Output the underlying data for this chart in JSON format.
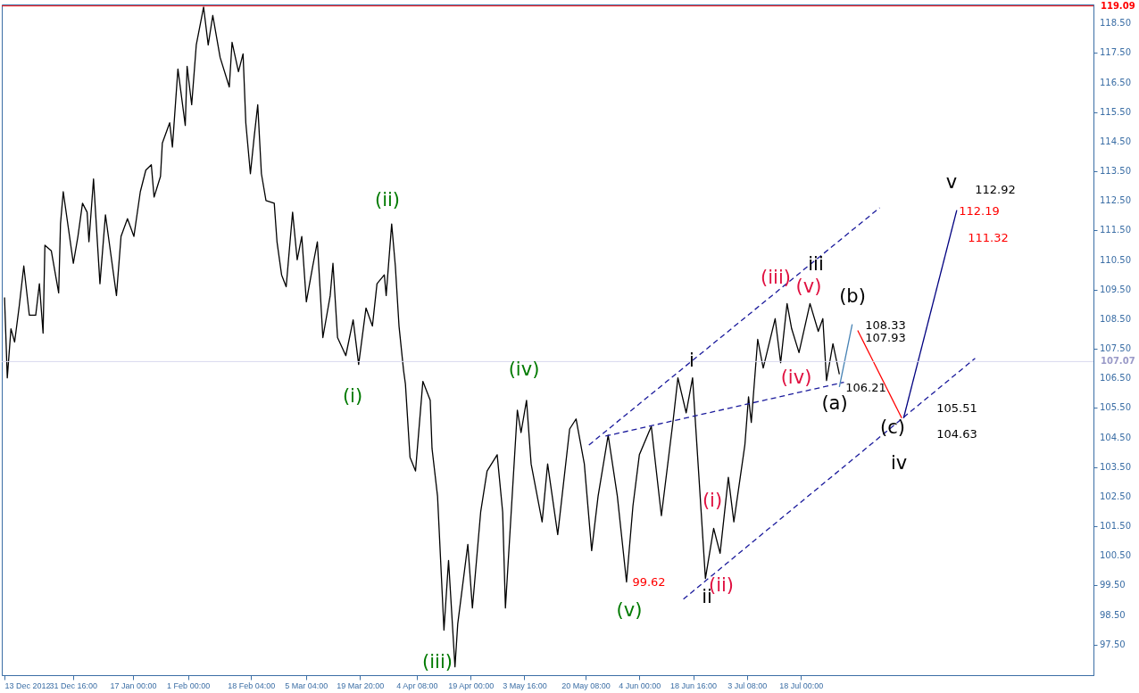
{
  "chart_data": {
    "type": "line",
    "xlim": [
      "2012-12-12T06:00",
      "2013-10-05T18:00"
    ],
    "xticks": [
      {
        "value": "2012-12-13T00:00",
        "label": "13 Dec 2012"
      },
      {
        "value": "2012-12-31T16:00",
        "label": "31 Dec 16:00"
      },
      {
        "value": "2013-01-17T00:00",
        "label": "17 Jan 00:00"
      },
      {
        "value": "2013-02-01T00:00",
        "label": "1 Feb 00:00"
      },
      {
        "value": "2013-02-18T04:00",
        "label": "18 Feb 04:00"
      },
      {
        "value": "2013-03-05T04:00",
        "label": "5 Mar 04:00"
      },
      {
        "value": "2013-03-19T20:00",
        "label": "19 Mar 20:00"
      },
      {
        "value": "2013-04-04T08:00",
        "label": "4 Apr 08:00"
      },
      {
        "value": "2013-04-19T00:00",
        "label": "19 Apr 00:00"
      },
      {
        "value": "2013-05-03T16:00",
        "label": "3 May 16:00"
      },
      {
        "value": "2013-05-20T08:00",
        "label": "20 May 08:00"
      },
      {
        "value": "2013-06-04T00:00",
        "label": "4 Jun 00:00"
      },
      {
        "value": "2013-06-18T16:00",
        "label": "18 Jun 16:00"
      },
      {
        "value": "2013-07-03T08:00",
        "label": "3 Jul 08:00"
      },
      {
        "value": "2013-07-18T00:00",
        "label": "18 Jul 00:00"
      }
    ],
    "ylim": [
      96.47,
      119.14
    ],
    "yticks": [
      {
        "value": 97.5,
        "label": "97.50"
      },
      {
        "value": 98.5,
        "label": "98.50"
      },
      {
        "value": 99.5,
        "label": "99.50"
      },
      {
        "value": 100.5,
        "label": "100.50"
      },
      {
        "value": 101.5,
        "label": "101.50"
      },
      {
        "value": 102.5,
        "label": "102.50"
      },
      {
        "value": 103.5,
        "label": "103.50"
      },
      {
        "value": 104.5,
        "label": "104.50"
      },
      {
        "value": 105.5,
        "label": "105.50"
      },
      {
        "value": 106.5,
        "label": "106.50"
      },
      {
        "value": 107.5,
        "label": "107.50"
      },
      {
        "value": 108.5,
        "label": "108.50"
      },
      {
        "value": 109.5,
        "label": "109.50"
      },
      {
        "value": 110.5,
        "label": "110.50"
      },
      {
        "value": 111.5,
        "label": "111.50"
      },
      {
        "value": 112.5,
        "label": "112.50"
      },
      {
        "value": 113.5,
        "label": "113.50"
      },
      {
        "value": 114.5,
        "label": "114.50"
      },
      {
        "value": 115.5,
        "label": "115.50"
      },
      {
        "value": 116.5,
        "label": "116.50"
      },
      {
        "value": 117.5,
        "label": "117.50"
      },
      {
        "value": 118.5,
        "label": "118.50"
      }
    ],
    "series": [
      {
        "color": "#000000",
        "x": [
          "2012-12-13T00:00",
          "2012-12-13T18:00",
          "2012-12-14T18:00",
          "2012-12-15T18:00",
          "2012-12-17T00:00",
          "2012-12-18T06:00",
          "2012-12-19T18:00",
          "2012-12-21T12:00",
          "2012-12-22T12:00",
          "2012-12-23T12:00",
          "2012-12-24T00:00",
          "2012-12-25T18:00",
          "2012-12-27T18:00",
          "2012-12-28T06:00",
          "2012-12-29T00:00",
          "2012-12-31T18:00",
          "2013-01-02T00:00",
          "2013-01-03T06:00",
          "2013-01-04T12:00",
          "2013-01-05T00:00",
          "2013-01-06T06:00",
          "2013-01-08T00:00",
          "2013-01-09T12:00",
          "2013-01-10T12:00",
          "2013-01-12T12:00",
          "2013-01-13T18:00",
          "2013-01-15T12:00",
          "2013-01-17T06:00",
          "2013-01-19T00:00",
          "2013-01-20T12:00",
          "2013-01-22T00:00",
          "2013-01-22T18:00",
          "2013-01-24T12:00",
          "2013-01-25T00:00",
          "2013-01-27T00:00",
          "2013-01-27T18:00",
          "2013-01-29T06:00",
          "2013-01-31T06:00",
          "2013-01-31T18:00",
          "2013-02-02T00:00",
          "2013-02-03T06:00",
          "2013-02-05T06:00",
          "2013-02-06T12:00",
          "2013-02-07T18:00",
          "2013-02-09T18:00",
          "2013-02-12T06:00",
          "2013-02-13T00:00",
          "2013-02-14T18:00",
          "2013-02-16T00:00",
          "2013-02-16T18:00",
          "2013-02-18T00:00",
          "2013-02-19T00:00",
          "2013-02-20T00:00",
          "2013-02-21T00:00",
          "2013-02-22T06:00",
          "2013-02-24T12:00",
          "2013-02-25T06:00",
          "2013-02-26T12:00",
          "2013-02-27T18:00",
          "2013-03-01T12:00",
          "2013-03-02T18:00",
          "2013-03-04T00:00",
          "2013-03-05T06:00",
          "2013-03-07T00:00",
          "2013-03-08T06:00",
          "2013-03-09T18:00",
          "2013-03-11T18:00",
          "2013-03-12T12:00",
          "2013-03-13T18:00",
          "2013-03-16T00:00",
          "2013-03-18T00:00",
          "2013-03-19T12:00",
          "2013-03-21T12:00",
          "2013-03-23T06:00",
          "2013-03-24T12:00",
          "2013-03-26T12:00",
          "2013-03-27T00:00",
          "2013-03-28T12:00",
          "2013-03-29T12:00",
          "2013-03-30T12:00",
          "2013-03-31T18:00",
          "2013-04-01T06:00",
          "2013-04-02T12:00",
          "2013-04-04T00:00",
          "2013-04-06T00:00",
          "2013-04-08T00:00",
          "2013-04-08T12:00",
          "2013-04-10T00:00",
          "2013-04-11T18:00",
          "2013-04-13T00:00",
          "2013-04-14T18:00",
          "2013-04-15T12:00",
          "2013-04-18T06:00",
          "2013-04-19T12:00",
          "2013-04-21T18:00",
          "2013-04-23T12:00",
          "2013-04-26T06:00",
          "2013-04-27T18:00",
          "2013-04-28T12:00",
          "2013-04-30T12:00",
          "2013-05-01T18:00",
          "2013-05-02T18:00",
          "2013-05-04T06:00",
          "2013-05-05T12:00",
          "2013-05-08T12:00",
          "2013-05-10T00:00",
          "2013-05-12T18:00",
          "2013-05-16T00:00",
          "2013-05-17T18:00",
          "2013-05-20T00:00",
          "2013-05-22T00:00",
          "2013-05-23T18:00",
          "2013-05-26T12:00",
          "2013-05-29T00:00",
          "2013-05-31T12:00",
          "2013-06-02T06:00",
          "2013-06-04T00:00",
          "2013-06-07T06:00",
          "2013-06-10T00:00",
          "2013-06-13T06:00",
          "2013-06-14T12:00",
          "2013-06-16T18:00",
          "2013-06-18T12:00",
          "2013-06-22T00:00",
          "2013-06-24T06:00",
          "2013-06-26T00:00",
          "2013-06-28T06:00",
          "2013-06-29T18:00",
          "2013-07-02T18:00",
          "2013-07-03T18:00",
          "2013-07-04T12:00",
          "2013-07-06T06:00",
          "2013-07-07T18:00",
          "2013-07-11T00:00",
          "2013-07-12T12:00",
          "2013-07-14T06:00",
          "2013-07-15T12:00",
          "2013-07-17T12:00",
          "2013-07-20T12:00",
          "2013-07-22T18:00",
          "2013-07-24T00:00",
          "2013-07-25T00:00",
          "2013-07-26T18:00",
          "2013-07-28T12:00"
        ],
        "values": [
          109.24,
          106.52,
          108.18,
          107.73,
          108.94,
          110.3,
          108.64,
          108.64,
          109.7,
          108.03,
          111.0,
          110.81,
          109.39,
          111.72,
          112.81,
          110.39,
          111.3,
          112.42,
          112.12,
          111.12,
          113.24,
          109.7,
          112.03,
          111.12,
          109.3,
          111.3,
          111.9,
          111.3,
          112.81,
          113.54,
          113.72,
          112.63,
          113.33,
          114.45,
          115.14,
          114.32,
          116.96,
          115.05,
          117.05,
          115.75,
          117.77,
          119.05,
          117.77,
          118.77,
          117.35,
          116.35,
          117.86,
          116.87,
          117.47,
          115.14,
          113.42,
          114.63,
          115.75,
          113.42,
          112.51,
          112.42,
          111.12,
          110.0,
          109.6,
          112.12,
          110.51,
          111.3,
          109.09,
          110.3,
          111.12,
          107.88,
          109.3,
          110.39,
          107.88,
          107.27,
          108.48,
          106.97,
          108.88,
          108.27,
          109.7,
          110.0,
          109.3,
          111.72,
          110.3,
          108.27,
          106.76,
          106.31,
          103.83,
          103.37,
          106.4,
          105.76,
          104.13,
          102.52,
          97.99,
          100.35,
          96.75,
          98.2,
          100.89,
          98.74,
          101.98,
          103.37,
          103.92,
          101.98,
          98.74,
          102.86,
          105.43,
          104.67,
          105.76,
          103.61,
          101.65,
          103.61,
          101.22,
          104.79,
          105.13,
          103.61,
          100.68,
          102.52,
          104.58,
          102.52,
          99.62,
          102.19,
          103.92,
          104.88,
          101.86,
          105.13,
          106.52,
          105.34,
          106.52,
          99.74,
          101.43,
          100.59,
          103.16,
          101.65,
          104.25,
          105.88,
          105.01,
          107.82,
          106.85,
          108.52,
          107.03,
          109.03,
          108.18,
          107.37,
          109.03,
          108.09,
          108.52,
          106.43,
          107.67,
          106.64
        ]
      },
      {
        "color": "#1a1a9c",
        "line_style": "dashed",
        "x": [
          "2013-05-21T06:00",
          "2013-08-08T12:00"
        ],
        "values": [
          104.25,
          112.27
        ]
      },
      {
        "color": "#1a1a9c",
        "line_style": "dashed",
        "x": [
          "2013-05-25T18:00",
          "2013-07-29T18:00"
        ],
        "values": [
          104.55,
          106.37
        ]
      },
      {
        "color": "#1a1a9c",
        "line_style": "dashed",
        "x": [
          "2013-06-16T00:00",
          "2013-09-03T12:00"
        ],
        "values": [
          99.04,
          107.18
        ]
      },
      {
        "color": "#4682b4",
        "x": [
          "2013-07-28T12:00",
          "2013-08-01T00:00"
        ],
        "values": [
          106.21,
          108.33
        ]
      },
      {
        "color": "#ff0000",
        "x": [
          "2013-08-02T12:00",
          "2013-08-14T12:00"
        ],
        "values": [
          108.12,
          105.16
        ]
      },
      {
        "color": "#000080",
        "x": [
          "2013-08-15T00:00",
          "2013-08-29T12:00"
        ],
        "values": [
          105.16,
          112.19
        ]
      }
    ],
    "ref_lines": [
      {
        "axis": "y",
        "value": 119.09,
        "label": "119.09",
        "color": "#ff0000"
      },
      {
        "axis": "y",
        "value": 107.07,
        "label": "107.07",
        "color": "#d8d8ee"
      }
    ],
    "annotations": [
      "(i)",
      "(ii)",
      "(iii)",
      "(iv)",
      "(v)",
      "i",
      "ii",
      "iii",
      "iv",
      "v",
      "(i)",
      "(ii)",
      "(iii)",
      "(iv)",
      "(v)",
      "(a)",
      "(b)",
      "(c)",
      "99.62",
      "106.21",
      "108.33",
      "107.93",
      "112.92",
      "112.19",
      "111.32",
      "105.51",
      "104.63"
    ]
  }
}
